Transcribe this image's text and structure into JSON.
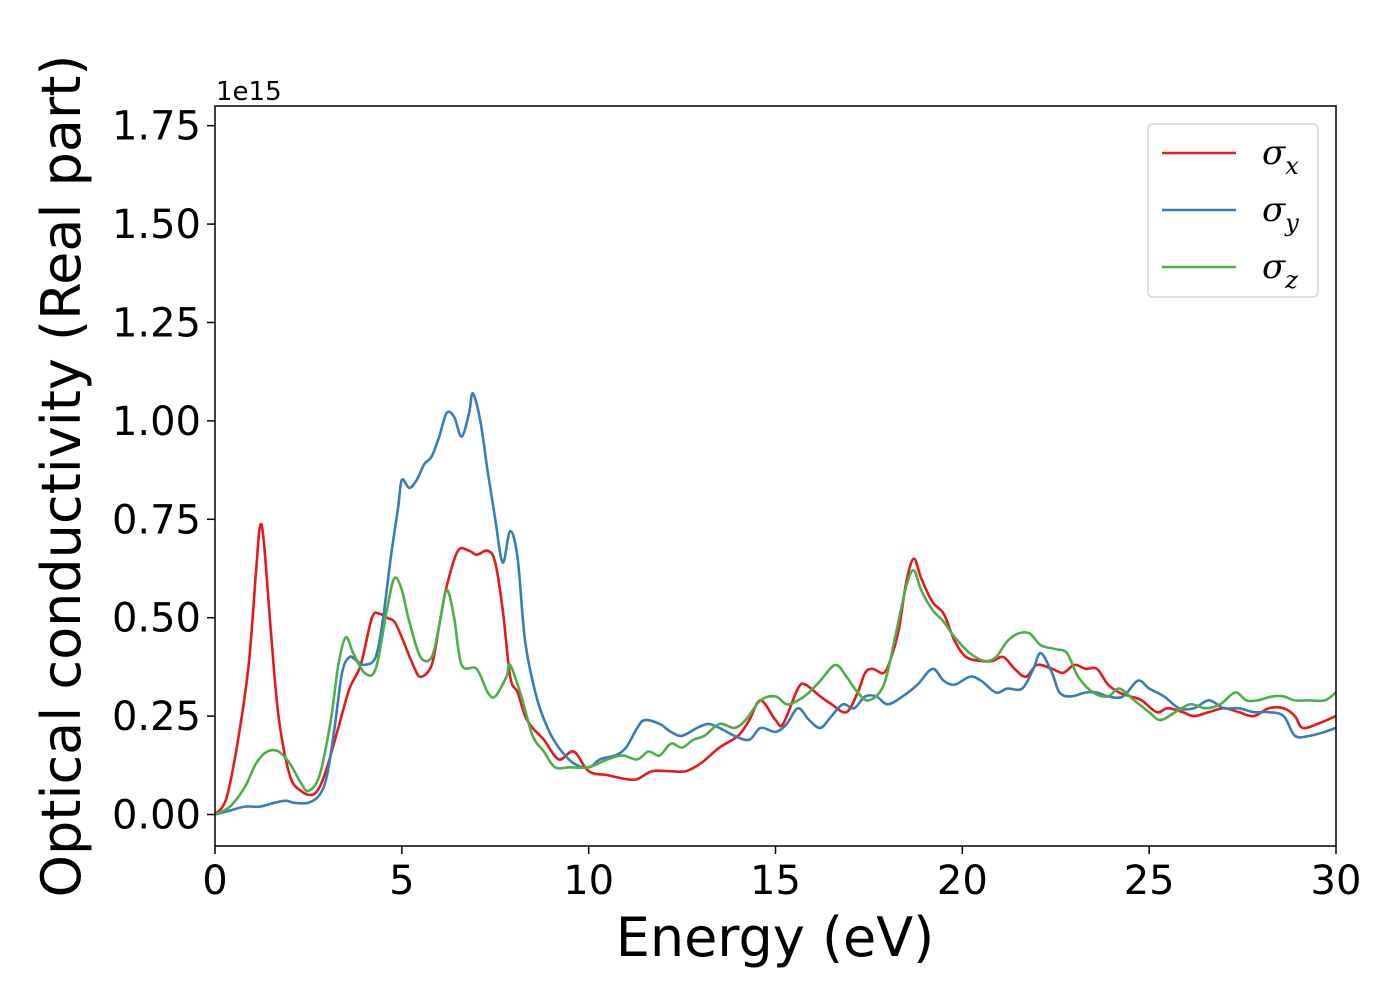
{
  "chart_data": {
    "type": "line",
    "title": "",
    "xlabel": "Energy (eV)",
    "ylabel": "Optical conductivity (Real part)",
    "y_offset_label": "1e15",
    "xlim": [
      0,
      30
    ],
    "ylim": [
      -0.08,
      1.8
    ],
    "x_ticks": [
      0,
      5,
      10,
      15,
      20,
      25,
      30
    ],
    "x_tick_labels": [
      "0",
      "5",
      "10",
      "15",
      "20",
      "25",
      "30"
    ],
    "y_ticks": [
      0.0,
      0.25,
      0.5,
      0.75,
      1.0,
      1.25,
      1.5,
      1.75
    ],
    "y_tick_labels": [
      "0.00",
      "0.25",
      "0.50",
      "0.75",
      "1.00",
      "1.25",
      "1.50",
      "1.75"
    ],
    "grid": false,
    "legend_position": "top-right",
    "series": [
      {
        "symbol": "σ",
        "sub": "x",
        "color": "#e41a1c",
        "points": [
          [
            0,
            0
          ],
          [
            0.3,
            0.04
          ],
          [
            0.6,
            0.18
          ],
          [
            0.9,
            0.38
          ],
          [
            1.1,
            0.62
          ],
          [
            1.2,
            0.73
          ],
          [
            1.3,
            0.7
          ],
          [
            1.5,
            0.46
          ],
          [
            1.7,
            0.25
          ],
          [
            2.0,
            0.1
          ],
          [
            2.3,
            0.06
          ],
          [
            2.6,
            0.05
          ],
          [
            2.8,
            0.07
          ],
          [
            3.0,
            0.12
          ],
          [
            3.3,
            0.22
          ],
          [
            3.6,
            0.32
          ],
          [
            3.9,
            0.38
          ],
          [
            4.2,
            0.5
          ],
          [
            4.4,
            0.51
          ],
          [
            4.6,
            0.5
          ],
          [
            4.8,
            0.49
          ],
          [
            5.0,
            0.45
          ],
          [
            5.3,
            0.38
          ],
          [
            5.5,
            0.35
          ],
          [
            5.8,
            0.38
          ],
          [
            6.0,
            0.48
          ],
          [
            6.2,
            0.58
          ],
          [
            6.5,
            0.67
          ],
          [
            6.8,
            0.67
          ],
          [
            7.0,
            0.66
          ],
          [
            7.3,
            0.67
          ],
          [
            7.5,
            0.64
          ],
          [
            7.7,
            0.52
          ],
          [
            7.9,
            0.35
          ],
          [
            8.1,
            0.31
          ],
          [
            8.3,
            0.25
          ],
          [
            8.5,
            0.22
          ],
          [
            8.8,
            0.19
          ],
          [
            9.2,
            0.14
          ],
          [
            9.6,
            0.16
          ],
          [
            10.0,
            0.11
          ],
          [
            10.5,
            0.1
          ],
          [
            11.0,
            0.09
          ],
          [
            11.3,
            0.09
          ],
          [
            11.7,
            0.11
          ],
          [
            12.2,
            0.11
          ],
          [
            12.6,
            0.11
          ],
          [
            13.0,
            0.13
          ],
          [
            13.5,
            0.17
          ],
          [
            14.0,
            0.2
          ],
          [
            14.3,
            0.24
          ],
          [
            14.6,
            0.29
          ],
          [
            15.0,
            0.24
          ],
          [
            15.2,
            0.23
          ],
          [
            15.6,
            0.32
          ],
          [
            15.8,
            0.33
          ],
          [
            16.2,
            0.3
          ],
          [
            16.5,
            0.28
          ],
          [
            16.9,
            0.26
          ],
          [
            17.2,
            0.31
          ],
          [
            17.4,
            0.36
          ],
          [
            17.6,
            0.37
          ],
          [
            17.9,
            0.36
          ],
          [
            18.1,
            0.4
          ],
          [
            18.3,
            0.47
          ],
          [
            18.5,
            0.59
          ],
          [
            18.7,
            0.65
          ],
          [
            18.9,
            0.6
          ],
          [
            19.2,
            0.54
          ],
          [
            19.5,
            0.51
          ],
          [
            19.8,
            0.44
          ],
          [
            20.1,
            0.4
          ],
          [
            20.5,
            0.39
          ],
          [
            20.8,
            0.39
          ],
          [
            21.1,
            0.4
          ],
          [
            21.4,
            0.37
          ],
          [
            21.7,
            0.35
          ],
          [
            22.0,
            0.38
          ],
          [
            22.4,
            0.37
          ],
          [
            22.7,
            0.36
          ],
          [
            23.0,
            0.38
          ],
          [
            23.3,
            0.37
          ],
          [
            23.6,
            0.37
          ],
          [
            23.9,
            0.33
          ],
          [
            24.2,
            0.31
          ],
          [
            24.5,
            0.3
          ],
          [
            24.8,
            0.29
          ],
          [
            25.2,
            0.26
          ],
          [
            25.5,
            0.27
          ],
          [
            25.9,
            0.26
          ],
          [
            26.2,
            0.25
          ],
          [
            26.6,
            0.26
          ],
          [
            27.0,
            0.27
          ],
          [
            27.4,
            0.26
          ],
          [
            27.8,
            0.25
          ],
          [
            28.2,
            0.27
          ],
          [
            28.6,
            0.27
          ],
          [
            28.9,
            0.25
          ],
          [
            29.1,
            0.22
          ],
          [
            29.5,
            0.23
          ],
          [
            30.0,
            0.25
          ]
        ]
      },
      {
        "symbol": "σ",
        "sub": "y",
        "color": "#377eb8",
        "points": [
          [
            0,
            0
          ],
          [
            0.4,
            0.01
          ],
          [
            0.8,
            0.02
          ],
          [
            1.2,
            0.02
          ],
          [
            1.6,
            0.03
          ],
          [
            1.9,
            0.035
          ],
          [
            2.1,
            0.03
          ],
          [
            2.5,
            0.03
          ],
          [
            2.8,
            0.05
          ],
          [
            3.0,
            0.1
          ],
          [
            3.2,
            0.22
          ],
          [
            3.4,
            0.36
          ],
          [
            3.6,
            0.4
          ],
          [
            3.8,
            0.39
          ],
          [
            4.0,
            0.38
          ],
          [
            4.3,
            0.4
          ],
          [
            4.5,
            0.5
          ],
          [
            4.7,
            0.65
          ],
          [
            4.9,
            0.78
          ],
          [
            5.0,
            0.85
          ],
          [
            5.2,
            0.83
          ],
          [
            5.4,
            0.85
          ],
          [
            5.6,
            0.89
          ],
          [
            5.8,
            0.91
          ],
          [
            6.0,
            0.96
          ],
          [
            6.2,
            1.02
          ],
          [
            6.4,
            1.01
          ],
          [
            6.6,
            0.96
          ],
          [
            6.8,
            1.02
          ],
          [
            6.9,
            1.07
          ],
          [
            7.1,
            1.0
          ],
          [
            7.3,
            0.87
          ],
          [
            7.5,
            0.75
          ],
          [
            7.7,
            0.64
          ],
          [
            7.9,
            0.72
          ],
          [
            8.1,
            0.65
          ],
          [
            8.3,
            0.44
          ],
          [
            8.6,
            0.3
          ],
          [
            8.9,
            0.22
          ],
          [
            9.2,
            0.17
          ],
          [
            9.6,
            0.13
          ],
          [
            10.0,
            0.12
          ],
          [
            10.3,
            0.14
          ],
          [
            10.7,
            0.15
          ],
          [
            11.0,
            0.17
          ],
          [
            11.3,
            0.22
          ],
          [
            11.5,
            0.24
          ],
          [
            11.9,
            0.23
          ],
          [
            12.2,
            0.21
          ],
          [
            12.5,
            0.2
          ],
          [
            12.9,
            0.22
          ],
          [
            13.2,
            0.23
          ],
          [
            13.5,
            0.22
          ],
          [
            13.9,
            0.2
          ],
          [
            14.3,
            0.19
          ],
          [
            14.6,
            0.22
          ],
          [
            15.0,
            0.21
          ],
          [
            15.3,
            0.23
          ],
          [
            15.6,
            0.27
          ],
          [
            15.9,
            0.24
          ],
          [
            16.2,
            0.22
          ],
          [
            16.5,
            0.25
          ],
          [
            16.8,
            0.28
          ],
          [
            17.1,
            0.27
          ],
          [
            17.4,
            0.3
          ],
          [
            17.7,
            0.3
          ],
          [
            18.0,
            0.28
          ],
          [
            18.4,
            0.3
          ],
          [
            18.8,
            0.33
          ],
          [
            19.2,
            0.37
          ],
          [
            19.5,
            0.34
          ],
          [
            19.8,
            0.33
          ],
          [
            20.2,
            0.35
          ],
          [
            20.5,
            0.34
          ],
          [
            20.9,
            0.31
          ],
          [
            21.2,
            0.32
          ],
          [
            21.6,
            0.32
          ],
          [
            21.9,
            0.37
          ],
          [
            22.1,
            0.41
          ],
          [
            22.4,
            0.36
          ],
          [
            22.6,
            0.31
          ],
          [
            22.9,
            0.3
          ],
          [
            23.3,
            0.31
          ],
          [
            23.6,
            0.31
          ],
          [
            23.9,
            0.3
          ],
          [
            24.3,
            0.3
          ],
          [
            24.7,
            0.34
          ],
          [
            25.0,
            0.32
          ],
          [
            25.4,
            0.3
          ],
          [
            25.8,
            0.27
          ],
          [
            26.2,
            0.27
          ],
          [
            26.6,
            0.29
          ],
          [
            27.0,
            0.27
          ],
          [
            27.4,
            0.27
          ],
          [
            27.8,
            0.26
          ],
          [
            28.2,
            0.26
          ],
          [
            28.6,
            0.25
          ],
          [
            28.9,
            0.2
          ],
          [
            29.3,
            0.2
          ],
          [
            29.7,
            0.21
          ],
          [
            30.0,
            0.22
          ]
        ]
      },
      {
        "symbol": "σ",
        "sub": "z",
        "color": "#4daf4a",
        "points": [
          [
            0,
            0
          ],
          [
            0.4,
            0.02
          ],
          [
            0.8,
            0.07
          ],
          [
            1.1,
            0.13
          ],
          [
            1.4,
            0.16
          ],
          [
            1.7,
            0.16
          ],
          [
            2.0,
            0.13
          ],
          [
            2.3,
            0.08
          ],
          [
            2.5,
            0.06
          ],
          [
            2.8,
            0.1
          ],
          [
            3.1,
            0.24
          ],
          [
            3.3,
            0.38
          ],
          [
            3.5,
            0.45
          ],
          [
            3.7,
            0.41
          ],
          [
            4.0,
            0.36
          ],
          [
            4.3,
            0.37
          ],
          [
            4.6,
            0.52
          ],
          [
            4.8,
            0.6
          ],
          [
            5.0,
            0.57
          ],
          [
            5.2,
            0.49
          ],
          [
            5.5,
            0.4
          ],
          [
            5.8,
            0.4
          ],
          [
            6.0,
            0.48
          ],
          [
            6.2,
            0.57
          ],
          [
            6.4,
            0.5
          ],
          [
            6.6,
            0.38
          ],
          [
            7.0,
            0.37
          ],
          [
            7.3,
            0.31
          ],
          [
            7.5,
            0.3
          ],
          [
            7.8,
            0.35
          ],
          [
            7.9,
            0.38
          ],
          [
            8.2,
            0.3
          ],
          [
            8.5,
            0.2
          ],
          [
            8.8,
            0.16
          ],
          [
            9.1,
            0.12
          ],
          [
            9.5,
            0.12
          ],
          [
            10.0,
            0.12
          ],
          [
            10.5,
            0.14
          ],
          [
            10.9,
            0.15
          ],
          [
            11.3,
            0.14
          ],
          [
            11.6,
            0.16
          ],
          [
            11.9,
            0.15
          ],
          [
            12.2,
            0.18
          ],
          [
            12.5,
            0.17
          ],
          [
            12.8,
            0.19
          ],
          [
            13.1,
            0.2
          ],
          [
            13.5,
            0.23
          ],
          [
            13.9,
            0.22
          ],
          [
            14.2,
            0.24
          ],
          [
            14.6,
            0.29
          ],
          [
            15.0,
            0.3
          ],
          [
            15.3,
            0.28
          ],
          [
            15.6,
            0.29
          ],
          [
            15.9,
            0.31
          ],
          [
            16.2,
            0.34
          ],
          [
            16.6,
            0.38
          ],
          [
            16.9,
            0.35
          ],
          [
            17.2,
            0.31
          ],
          [
            17.5,
            0.29
          ],
          [
            17.9,
            0.33
          ],
          [
            18.2,
            0.45
          ],
          [
            18.5,
            0.58
          ],
          [
            18.7,
            0.62
          ],
          [
            18.9,
            0.57
          ],
          [
            19.2,
            0.52
          ],
          [
            19.5,
            0.49
          ],
          [
            19.8,
            0.45
          ],
          [
            20.2,
            0.41
          ],
          [
            20.6,
            0.39
          ],
          [
            20.9,
            0.4
          ],
          [
            21.2,
            0.44
          ],
          [
            21.5,
            0.46
          ],
          [
            21.8,
            0.46
          ],
          [
            22.1,
            0.43
          ],
          [
            22.5,
            0.42
          ],
          [
            22.8,
            0.41
          ],
          [
            23.1,
            0.35
          ],
          [
            23.5,
            0.31
          ],
          [
            23.9,
            0.3
          ],
          [
            24.2,
            0.32
          ],
          [
            24.6,
            0.29
          ],
          [
            25.0,
            0.26
          ],
          [
            25.3,
            0.24
          ],
          [
            25.7,
            0.26
          ],
          [
            26.1,
            0.28
          ],
          [
            26.5,
            0.27
          ],
          [
            26.9,
            0.28
          ],
          [
            27.3,
            0.31
          ],
          [
            27.6,
            0.29
          ],
          [
            27.9,
            0.29
          ],
          [
            28.3,
            0.3
          ],
          [
            28.6,
            0.3
          ],
          [
            28.9,
            0.29
          ],
          [
            29.3,
            0.29
          ],
          [
            29.7,
            0.29
          ],
          [
            30.0,
            0.31
          ]
        ]
      }
    ]
  }
}
